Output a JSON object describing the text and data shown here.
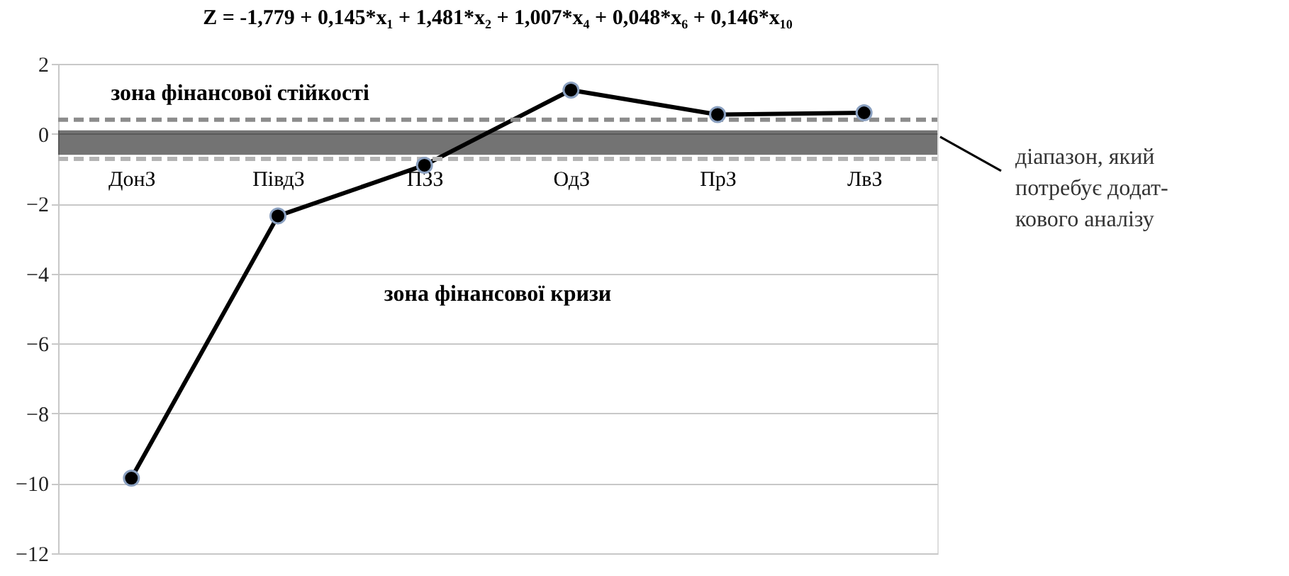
{
  "chart_data": {
    "type": "line",
    "title": "Z = -1,779 + 0,145*x₁ + 1,481*x₂ + 1,007*x₄ + 0,048*x₆ + 0,146*x₁₀",
    "categories": [
      "ДонЗ",
      "ПівдЗ",
      "ПЗЗ",
      "ОдЗ",
      "ПрЗ",
      "ЛвЗ"
    ],
    "series": [
      {
        "color": "#000000",
        "values": [
          -9.85,
          -2.35,
          -0.9,
          1.25,
          0.55,
          0.6
        ]
      }
    ],
    "ylim": [
      -12,
      2
    ],
    "yticks": [
      -12,
      -10,
      -8,
      -6,
      -4,
      -2,
      0,
      2
    ],
    "grid": "y",
    "marker": "circle",
    "line_style": "solid",
    "ref_lines": [
      {
        "axis": "y",
        "value": 0.4,
        "color": "#8c8c8c",
        "line_style": "dashed"
      },
      {
        "axis": "y",
        "value": -0.72,
        "color": "#b4b4b4",
        "line_style": "dashed"
      }
    ],
    "bands": [
      {
        "axis": "y",
        "from": -0.6,
        "to": 0.1,
        "color": "#000000",
        "label": "діапазон, який\nпотребує додат-\nкового аналізу"
      }
    ],
    "annotations": [
      "зона фінансової стійкості",
      "зона фінансової кризи"
    ]
  }
}
